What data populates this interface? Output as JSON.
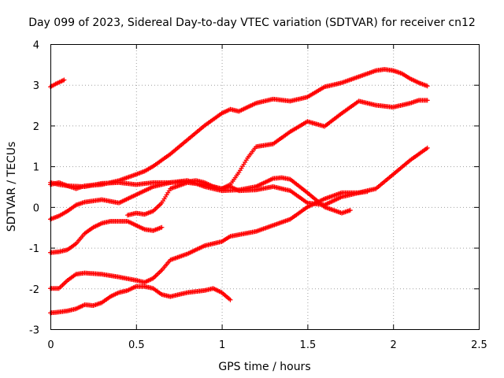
{
  "chart_data": {
    "type": "scatter",
    "title": "Day 099 of 2023, Sidereal Day-to-day VTEC variation (SDTVAR) for receiver cn12",
    "xlabel": "GPS time / hours",
    "ylabel": "SDTVAR / TECUs",
    "xlim": [
      0,
      2.5
    ],
    "ylim": [
      -3,
      4
    ],
    "xticks": [
      "0",
      "0.5",
      "1",
      "1.5",
      "2",
      "2.5"
    ],
    "yticks": [
      "-3",
      "-2",
      "-1",
      "0",
      "1",
      "2",
      "3",
      "4"
    ],
    "grid": true,
    "marker": "plus",
    "marker_color": "#ff0000",
    "series": [
      {
        "x": [
          0.0,
          0.03,
          0.06,
          0.08
        ],
        "y": [
          2.95,
          3.02,
          3.08,
          3.12
        ]
      },
      {
        "x": [
          0.0,
          0.05,
          0.1,
          0.15,
          0.2,
          0.3,
          0.4,
          0.5,
          0.55,
          0.6,
          0.7,
          0.8,
          0.9,
          1.0,
          1.05,
          1.1,
          1.2,
          1.3,
          1.4,
          1.5,
          1.6,
          1.7,
          1.8,
          1.9,
          1.95,
          2.0,
          2.05,
          2.1,
          2.15,
          2.2
        ],
        "y": [
          0.6,
          0.55,
          0.52,
          0.45,
          0.52,
          0.55,
          0.65,
          0.8,
          0.88,
          1.0,
          1.3,
          1.65,
          2.0,
          2.3,
          2.4,
          2.35,
          2.55,
          2.65,
          2.6,
          2.7,
          2.95,
          3.05,
          3.2,
          3.35,
          3.38,
          3.35,
          3.28,
          3.15,
          3.05,
          2.97
        ]
      },
      {
        "x": [
          0.0,
          0.05,
          0.1,
          0.2,
          0.3,
          0.4,
          0.5,
          0.6,
          0.7,
          0.8,
          0.85,
          0.9,
          0.95,
          1.0,
          1.05,
          1.1,
          1.15,
          1.2,
          1.3,
          1.4,
          1.5,
          1.6,
          1.7,
          1.8,
          1.9,
          2.0,
          2.1,
          2.15,
          2.2
        ],
        "y": [
          0.55,
          0.6,
          0.52,
          0.5,
          0.58,
          0.6,
          0.55,
          0.6,
          0.6,
          0.62,
          0.65,
          0.6,
          0.5,
          0.45,
          0.55,
          0.85,
          1.2,
          1.48,
          1.55,
          1.85,
          2.1,
          1.98,
          2.3,
          2.6,
          2.5,
          2.45,
          2.55,
          2.62,
          2.62
        ]
      },
      {
        "x": [
          0.0,
          0.05,
          0.1,
          0.15,
          0.2,
          0.3,
          0.4,
          0.5,
          0.6,
          0.7,
          0.8,
          0.9,
          1.0,
          1.1,
          1.2,
          1.3,
          1.35,
          1.4,
          1.5,
          1.6,
          1.7,
          1.75
        ],
        "y": [
          -0.3,
          -0.22,
          -0.1,
          0.05,
          0.12,
          0.18,
          0.1,
          0.3,
          0.5,
          0.6,
          0.65,
          0.5,
          0.4,
          0.42,
          0.5,
          0.7,
          0.72,
          0.68,
          0.35,
          0.0,
          -0.15,
          -0.08
        ]
      },
      {
        "x": [
          0.45,
          0.5,
          0.55,
          0.6,
          0.65,
          0.7,
          0.8,
          0.9,
          1.0,
          1.05,
          1.1,
          1.2,
          1.3,
          1.4,
          1.5,
          1.6,
          1.7,
          1.8,
          1.9,
          2.0,
          2.1,
          2.2
        ],
        "y": [
          -0.2,
          -0.15,
          -0.18,
          -0.1,
          0.1,
          0.45,
          0.6,
          0.55,
          0.45,
          0.5,
          0.4,
          0.42,
          0.5,
          0.4,
          0.1,
          0.05,
          0.25,
          0.35,
          0.45,
          0.8,
          1.15,
          1.45
        ]
      },
      {
        "x": [
          0.0,
          0.05,
          0.1,
          0.15,
          0.2,
          0.25,
          0.3,
          0.35,
          0.4,
          0.45,
          0.5,
          0.55,
          0.6,
          0.65
        ],
        "y": [
          -1.12,
          -1.1,
          -1.05,
          -0.9,
          -0.65,
          -0.5,
          -0.4,
          -0.35,
          -0.35,
          -0.35,
          -0.45,
          -0.55,
          -0.58,
          -0.5
        ]
      },
      {
        "x": [
          0.0,
          0.05,
          0.1,
          0.15,
          0.2,
          0.3,
          0.4,
          0.5,
          0.55,
          0.6,
          0.65,
          0.7,
          0.8,
          0.9,
          1.0,
          1.05,
          1.1,
          1.2,
          1.3,
          1.4,
          1.5,
          1.6,
          1.7,
          1.8,
          1.85
        ],
        "y": [
          -2.0,
          -2.0,
          -1.8,
          -1.65,
          -1.62,
          -1.65,
          -1.72,
          -1.8,
          -1.85,
          -1.75,
          -1.55,
          -1.3,
          -1.15,
          -0.95,
          -0.85,
          -0.72,
          -0.68,
          -0.6,
          -0.45,
          -0.3,
          0.0,
          0.2,
          0.35,
          0.35,
          0.38
        ]
      },
      {
        "x": [
          0.0,
          0.05,
          0.1,
          0.15,
          0.2,
          0.25,
          0.3,
          0.35,
          0.4,
          0.45,
          0.5,
          0.55,
          0.6,
          0.65,
          0.7,
          0.8,
          0.9,
          0.95,
          1.0,
          1.05
        ],
        "y": [
          -2.6,
          -2.58,
          -2.55,
          -2.5,
          -2.4,
          -2.42,
          -2.35,
          -2.2,
          -2.1,
          -2.05,
          -1.95,
          -1.95,
          -2.0,
          -2.15,
          -2.2,
          -2.1,
          -2.05,
          -2.0,
          -2.1,
          -2.28
        ]
      }
    ]
  }
}
